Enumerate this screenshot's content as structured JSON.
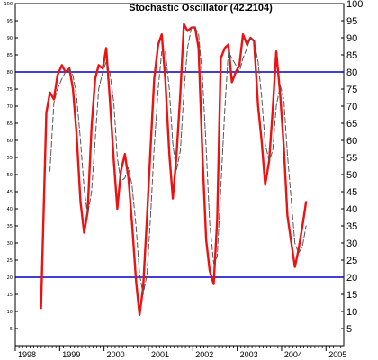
{
  "chart_data": {
    "type": "line",
    "title": "Stochastic Oscillator (42.2104)",
    "xlabel": "",
    "ylabel": "",
    "ylim": [
      0,
      100
    ],
    "xlim": [
      1998.0,
      2005.4
    ],
    "y_ticks": [
      5,
      10,
      15,
      20,
      25,
      30,
      35,
      40,
      45,
      50,
      55,
      60,
      65,
      70,
      75,
      80,
      85,
      90,
      95,
      100
    ],
    "left_tick_labels": [
      "5",
      "10",
      "15",
      "20",
      "25",
      "30",
      "35",
      "40",
      "45",
      "50",
      "55",
      "60",
      "65",
      "70",
      "75",
      "80",
      "85",
      "90",
      "95",
      "100"
    ],
    "x_tick_labels": [
      "1998",
      "1999",
      "2000",
      "2001",
      "2002",
      "2003",
      "2004",
      "2005"
    ],
    "reference_lines": [
      20,
      80
    ],
    "reference_color": "#0000cc",
    "series": [
      {
        "name": "",
        "color": "#ee1111",
        "style": "solid",
        "x": [
          1998.58,
          1998.7,
          1998.78,
          1998.87,
          1998.95,
          1999.05,
          1999.13,
          1999.22,
          1999.3,
          1999.38,
          1999.47,
          1999.55,
          1999.63,
          1999.72,
          1999.8,
          1999.88,
          1999.97,
          2000.05,
          2000.13,
          2000.22,
          2000.3,
          2000.38,
          2000.47,
          2000.55,
          2000.63,
          2000.72,
          2000.8,
          2000.88,
          2000.97,
          2001.05,
          2001.13,
          2001.22,
          2001.3,
          2001.38,
          2001.47,
          2001.55,
          2001.63,
          2001.72,
          2001.8,
          2001.88,
          2001.97,
          2002.05,
          2002.13,
          2002.22,
          2002.3,
          2002.38,
          2002.47,
          2002.55,
          2002.63,
          2002.72,
          2002.8,
          2002.88,
          2002.97,
          2003.05,
          2003.13,
          2003.22,
          2003.3,
          2003.38,
          2003.47,
          2003.55,
          2003.63,
          2003.72,
          2003.8,
          2003.88,
          2003.97,
          2004.05,
          2004.13,
          2004.22,
          2004.3,
          2004.38,
          2004.47,
          2004.55
        ],
        "y": [
          11,
          68,
          74,
          72,
          79,
          82,
          80,
          81,
          75,
          62,
          42,
          33,
          39,
          64,
          78,
          82,
          81,
          87,
          72,
          54,
          40,
          51,
          56,
          49,
          36,
          19,
          9,
          17,
          38,
          58,
          78,
          88,
          91,
          78,
          56,
          43,
          55,
          74,
          94,
          92,
          93,
          93,
          87,
          55,
          31,
          22,
          18,
          37,
          84,
          87,
          88,
          77,
          80,
          82,
          91,
          88,
          90,
          89,
          70,
          60,
          47,
          54,
          69,
          86,
          73,
          58,
          38,
          30,
          23,
          28,
          35,
          42
        ]
      },
      {
        "name": "",
        "color": "#555555",
        "style": "dashed",
        "x": [
          1998.78,
          1998.87,
          1998.95,
          1999.05,
          1999.13,
          1999.22,
          1999.3,
          1999.38,
          1999.47,
          1999.55,
          1999.63,
          1999.72,
          1999.8,
          1999.88,
          1999.97,
          2000.05,
          2000.13,
          2000.22,
          2000.3,
          2000.38,
          2000.47,
          2000.55,
          2000.63,
          2000.72,
          2000.8,
          2000.88,
          2000.97,
          2001.05,
          2001.13,
          2001.22,
          2001.3,
          2001.38,
          2001.47,
          2001.55,
          2001.63,
          2001.72,
          2001.8,
          2001.88,
          2001.97,
          2002.05,
          2002.13,
          2002.22,
          2002.3,
          2002.38,
          2002.47,
          2002.55,
          2002.63,
          2002.72,
          2002.8,
          2002.88,
          2002.97,
          2003.05,
          2003.13,
          2003.22,
          2003.3,
          2003.38,
          2003.47,
          2003.55,
          2003.63,
          2003.72,
          2003.8,
          2003.88,
          2003.97,
          2004.05,
          2004.13,
          2004.22,
          2004.3,
          2004.38,
          2004.47,
          2004.55
        ],
        "y": [
          51,
          71,
          75,
          78,
          80,
          81,
          79,
          73,
          60,
          46,
          38,
          45,
          60,
          75,
          80,
          83,
          80,
          71,
          55,
          48,
          49,
          52,
          47,
          35,
          21,
          15,
          21,
          38,
          58,
          75,
          86,
          86,
          75,
          59,
          51,
          57,
          74,
          87,
          93,
          93,
          91,
          78,
          58,
          36,
          24,
          26,
          46,
          69,
          86,
          84,
          82,
          80,
          84,
          87,
          90,
          89,
          83,
          73,
          59,
          54,
          57,
          70,
          76,
          72,
          56,
          42,
          30,
          27,
          29,
          35
        ]
      }
    ]
  }
}
